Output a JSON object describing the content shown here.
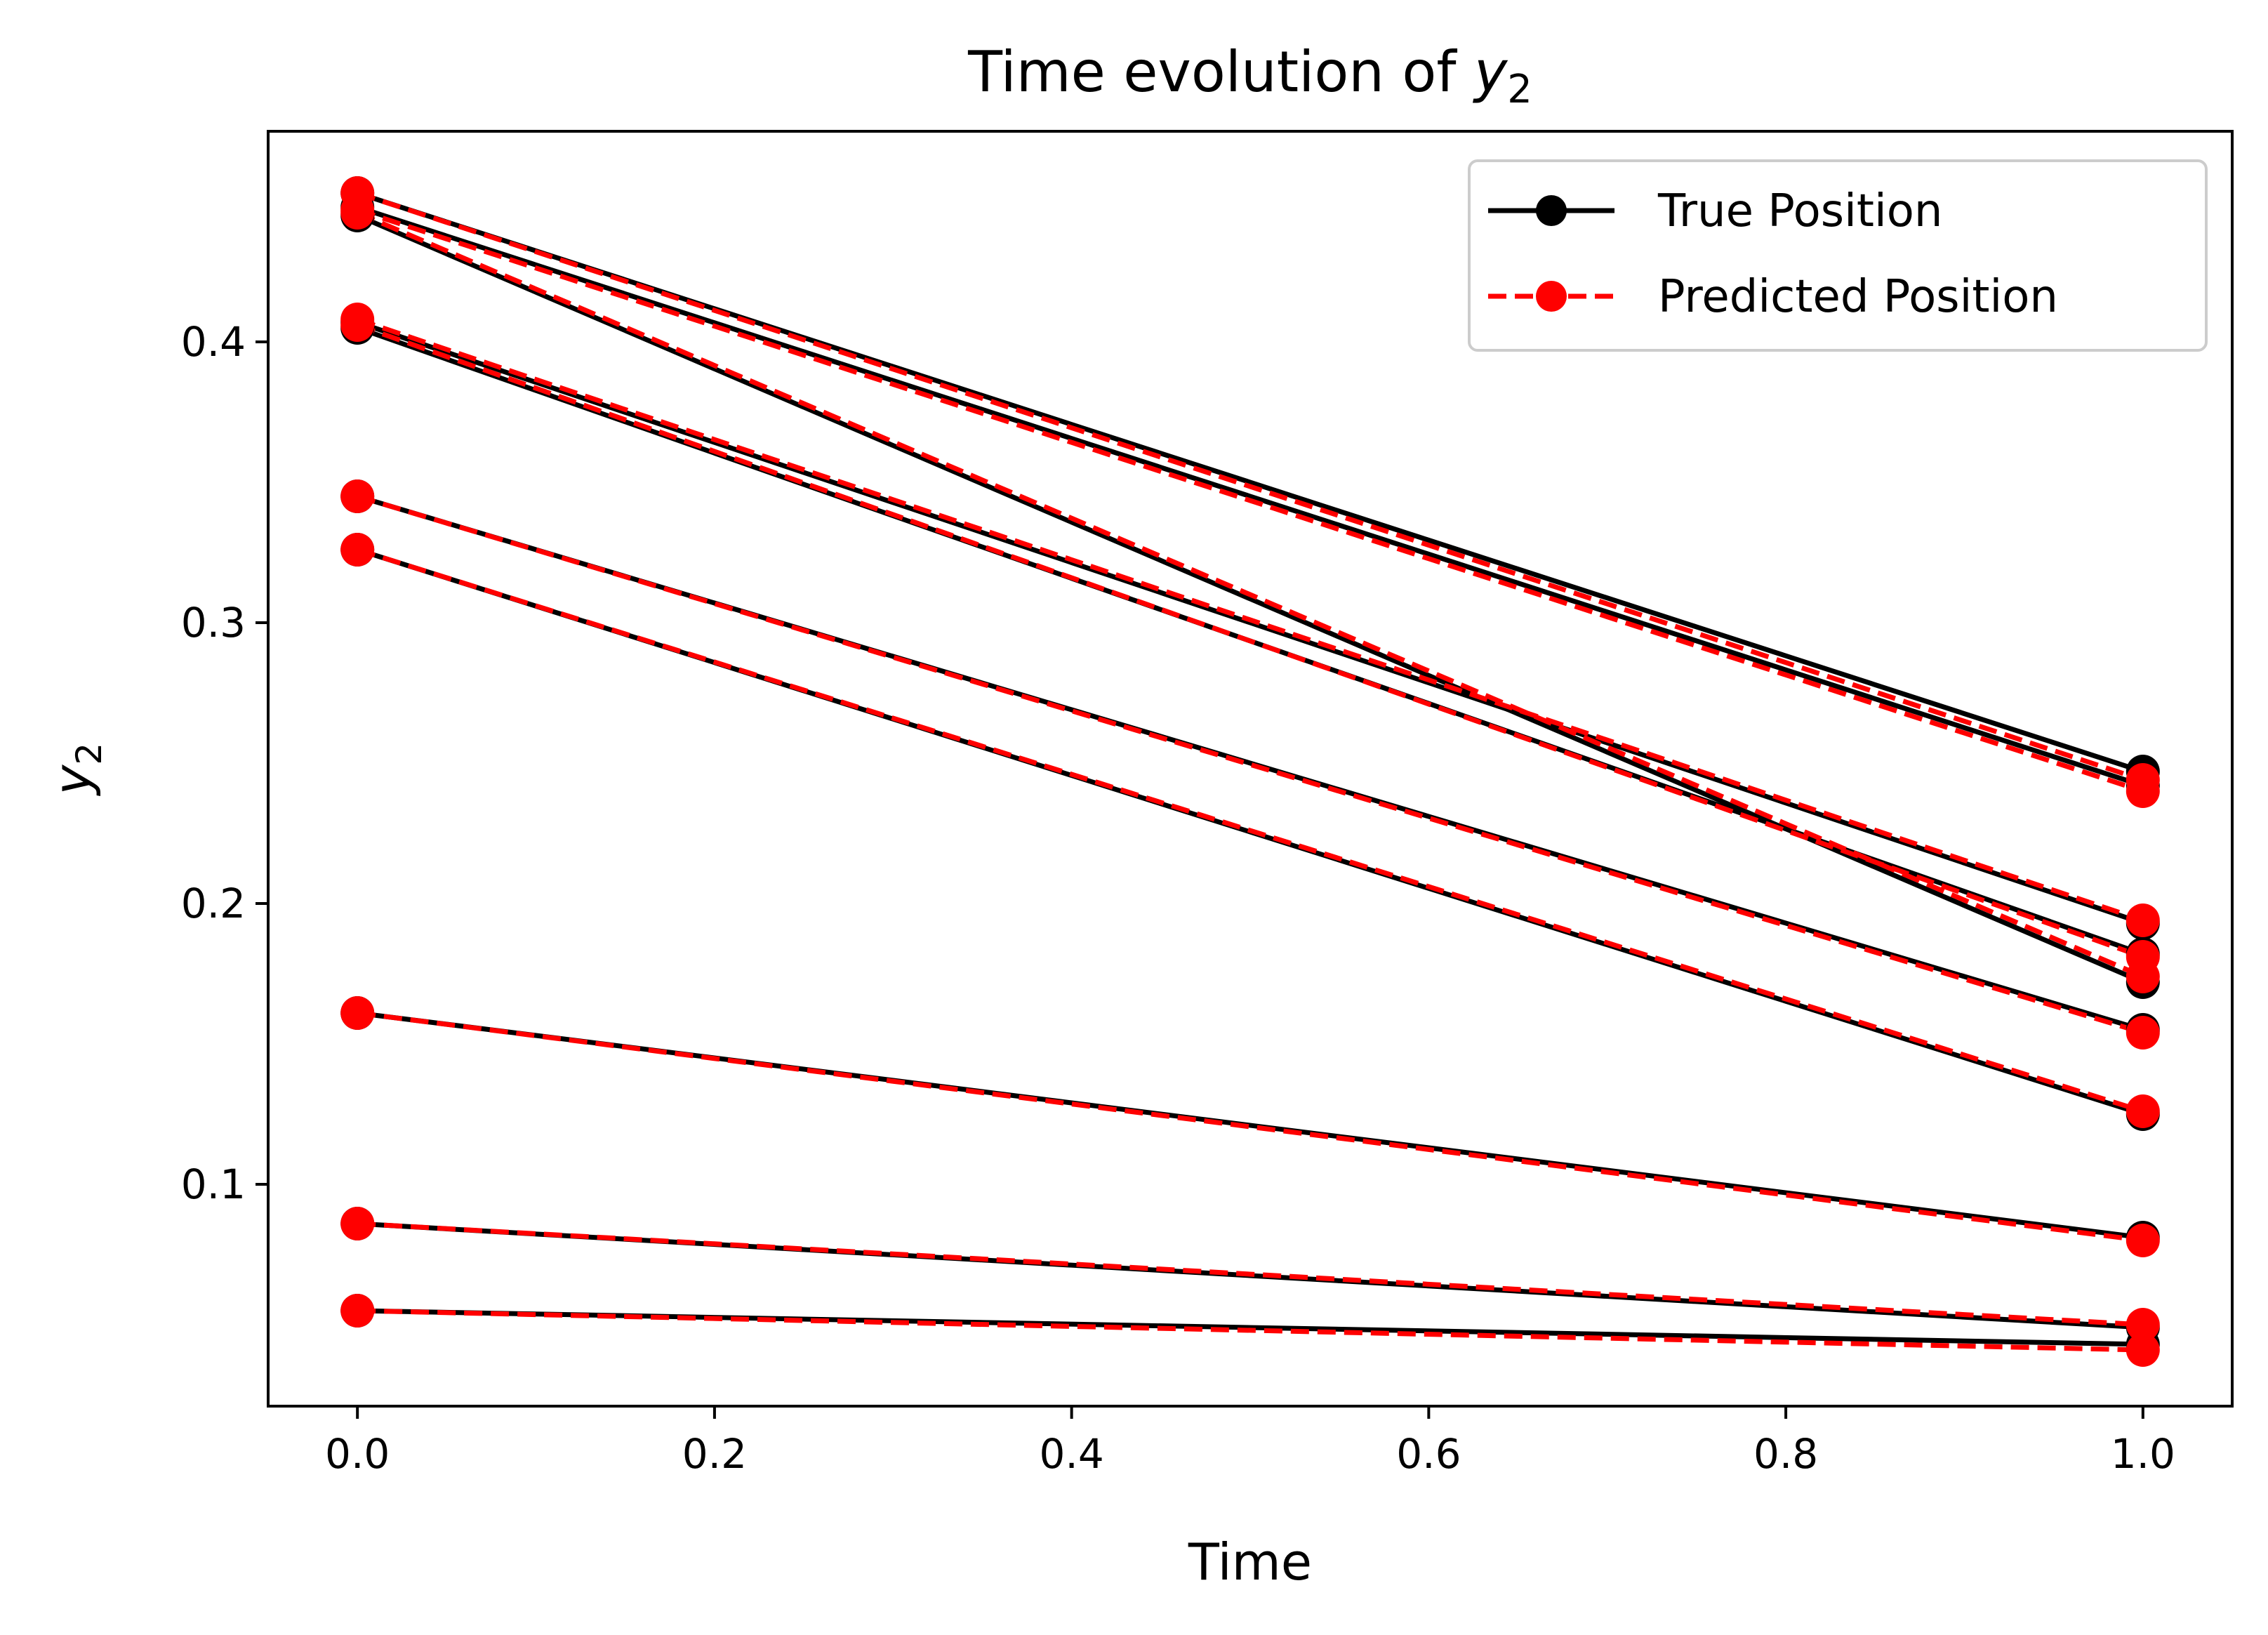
{
  "chart_data": {
    "type": "line",
    "title_main": "Time evolution of ",
    "title_var": "y",
    "title_sub": "2",
    "xlabel": "Time",
    "ylabel_var": "y",
    "ylabel_sub": "2",
    "xlim": [
      -0.05,
      1.05
    ],
    "ylim": [
      0.021,
      0.475
    ],
    "xticks": [
      0.0,
      0.2,
      0.4,
      0.6,
      0.8,
      1.0
    ],
    "xtick_labels": [
      "0.0",
      "0.2",
      "0.4",
      "0.6",
      "0.8",
      "1.0"
    ],
    "yticks": [
      0.1,
      0.2,
      0.3,
      0.4
    ],
    "ytick_labels": [
      "0.1",
      "0.2",
      "0.3",
      "0.4"
    ],
    "legend_position": "top-right",
    "legend": [
      {
        "label": "True Position",
        "color": "#000000",
        "style": "solid"
      },
      {
        "label": "Predicted Position",
        "color": "#ff0000",
        "style": "dashed"
      }
    ],
    "x": [
      0.0,
      1.0
    ],
    "true_series": [
      [
        0.453,
        0.247
      ],
      [
        0.448,
        0.242
      ],
      [
        0.445,
        0.172
      ],
      [
        0.407,
        0.193
      ],
      [
        0.405,
        0.182
      ],
      [
        0.345,
        0.155
      ],
      [
        0.326,
        0.125
      ],
      [
        0.161,
        0.081
      ],
      [
        0.086,
        0.049
      ],
      [
        0.055,
        0.043
      ]
    ],
    "predicted_series": [
      [
        0.453,
        0.244
      ],
      [
        0.447,
        0.24
      ],
      [
        0.446,
        0.174
      ],
      [
        0.408,
        0.194
      ],
      [
        0.406,
        0.181
      ],
      [
        0.345,
        0.154
      ],
      [
        0.326,
        0.126
      ],
      [
        0.161,
        0.08
      ],
      [
        0.086,
        0.05
      ],
      [
        0.055,
        0.041
      ]
    ]
  }
}
